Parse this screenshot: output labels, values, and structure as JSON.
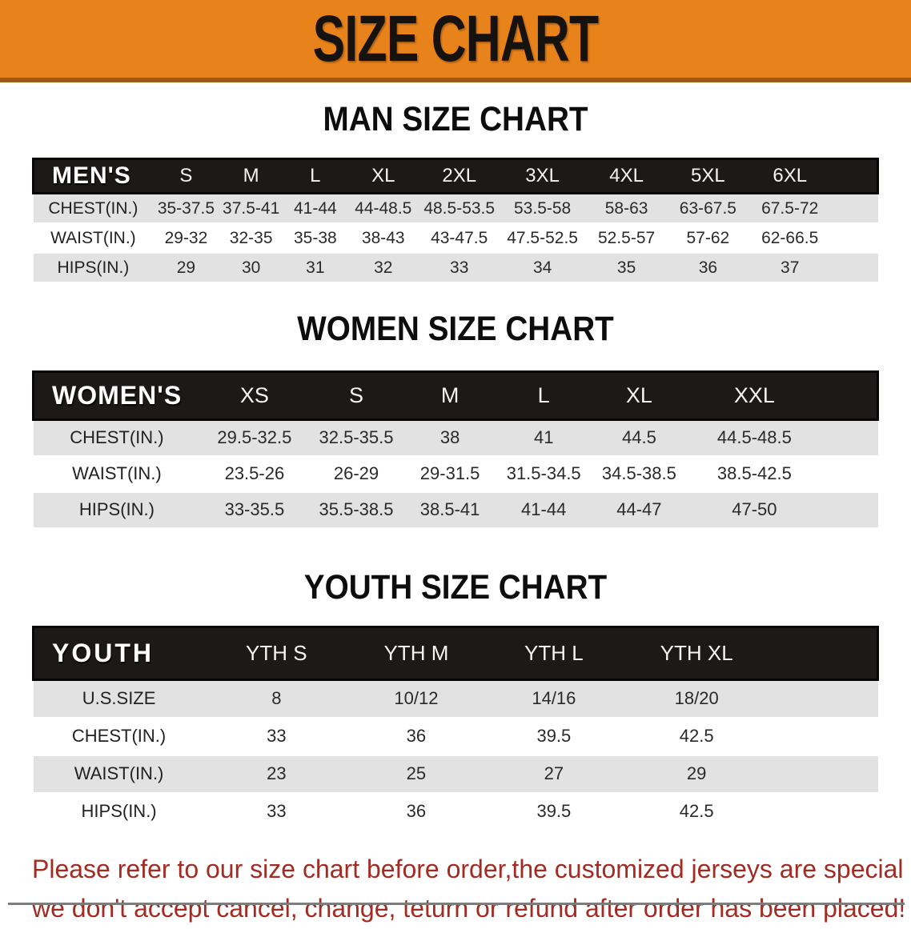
{
  "banner": {
    "title": "SIZE CHART"
  },
  "sections": [
    {
      "heading": "MAN SIZE CHART",
      "table": {
        "corner_label": "MEN'S",
        "columns": [
          "S",
          "M",
          "L",
          "XL",
          "2XL",
          "3XL",
          "4XL",
          "5XL",
          "6XL"
        ],
        "rows": [
          {
            "label": "CHEST(IN.)",
            "values": [
              "35-37.5",
              "37.5-41",
              "41-44",
              "44-48.5",
              "48.5-53.5",
              "53.5-58",
              "58-63",
              "63-67.5",
              "67.5-72"
            ]
          },
          {
            "label": "WAIST(IN.)",
            "values": [
              "29-32",
              "32-35",
              "35-38",
              "38-43",
              "43-47.5",
              "47.5-52.5",
              "52.5-57",
              "57-62",
              "62-66.5"
            ]
          },
          {
            "label": "HIPS(IN.)",
            "values": [
              "29",
              "30",
              "31",
              "32",
              "33",
              "34",
              "35",
              "36",
              "37"
            ]
          }
        ]
      }
    },
    {
      "heading": "WOMEN SIZE CHART",
      "table": {
        "corner_label": "WOMEN'S",
        "columns": [
          "XS",
          "S",
          "M",
          "L",
          "XL",
          "XXL"
        ],
        "rows": [
          {
            "label": "CHEST(IN.)",
            "values": [
              "29.5-32.5",
              "32.5-35.5",
              "38",
              "41",
              "44.5",
              "44.5-48.5"
            ]
          },
          {
            "label": "WAIST(IN.)",
            "values": [
              "23.5-26",
              "26-29",
              "29-31.5",
              "31.5-34.5",
              "34.5-38.5",
              "38.5-42.5"
            ]
          },
          {
            "label": "HIPS(IN.)",
            "values": [
              "33-35.5",
              "35.5-38.5",
              "38.5-41",
              "41-44",
              "44-47",
              "47-50"
            ]
          }
        ]
      }
    },
    {
      "heading": "YOUTH SIZE CHART",
      "table": {
        "corner_label": "YOUTH",
        "columns": [
          "YTH S",
          "YTH M",
          "YTH L",
          "YTH XL"
        ],
        "rows": [
          {
            "label": "U.S.SIZE",
            "values": [
              "8",
              "10/12",
              "14/16",
              "18/20"
            ]
          },
          {
            "label": "CHEST(IN.)",
            "values": [
              "33",
              "36",
              "39.5",
              "42.5"
            ]
          },
          {
            "label": "WAIST(IN.)",
            "values": [
              "23",
              "25",
              "27",
              "29"
            ]
          },
          {
            "label": "HIPS(IN.)",
            "values": [
              "33",
              "36",
              "39.5",
              "42.5"
            ]
          }
        ]
      }
    }
  ],
  "disclaimer": {
    "line1": "Please refer to our size chart before order,the customized jerseys are special products,",
    "line2": "we don't accept cancel, change, teturn or refund after order has been placed!"
  },
  "colors": {
    "banner_orange": "#E8821B",
    "banner_edge": "#9C5A17",
    "table_header_black": "#1C1918",
    "row_gray": "#E2E2E2",
    "disclaimer_red": "#A32B22"
  }
}
